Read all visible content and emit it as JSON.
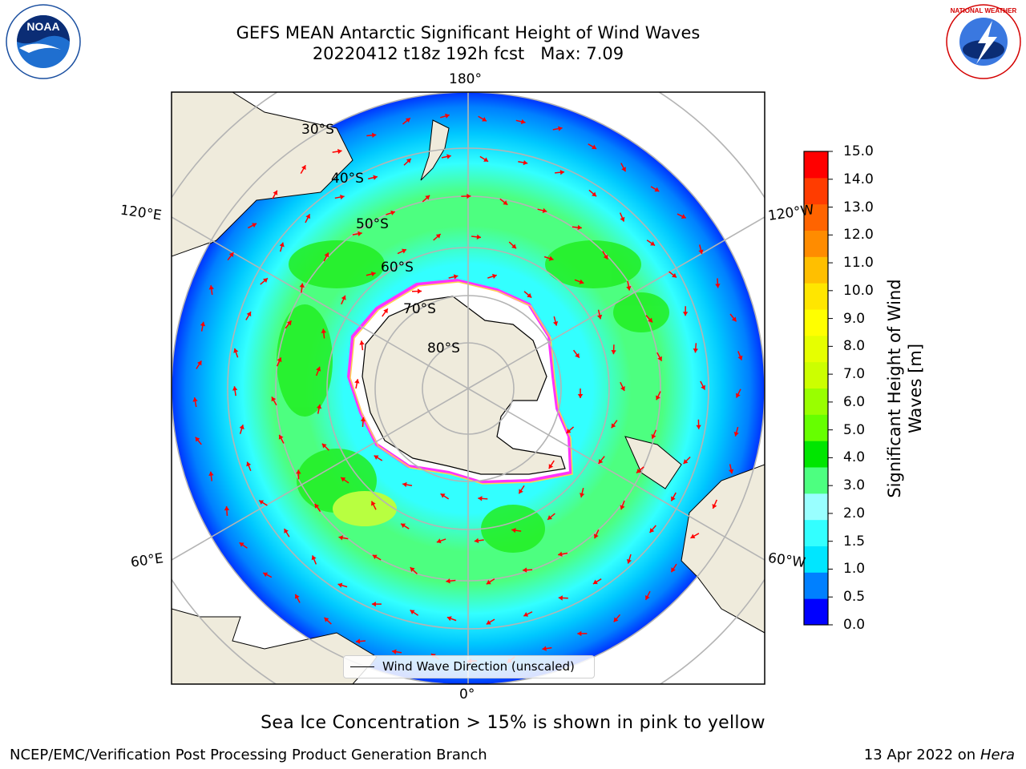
{
  "title": {
    "line1": "GEFS MEAN Antarctic Significant Height of Wind Waves",
    "line2": "20220412 t18z 192h fcst   Max: 7.09"
  },
  "logos": {
    "left": "NOAA",
    "right": "NATIONAL WEATHER SERVICE"
  },
  "map": {
    "projection": "south-polar-stereographic",
    "longitude_labels": [
      "180°",
      "120°E",
      "120°W",
      "60°E",
      "60°W",
      "0°"
    ],
    "latitude_labels": [
      "30°S",
      "40°S",
      "50°S",
      "60°S",
      "70°S",
      "80°S"
    ],
    "colors": {
      "land": "#efebdc",
      "ice": "#ffffff",
      "ice_edge": [
        "#ff33ff",
        "#ffd24d"
      ],
      "arrows": "#ff0000",
      "grid": "#b4b4b4"
    }
  },
  "legend": {
    "label": "Wind Wave Direction (unscaled)"
  },
  "colorbar": {
    "label_line1": "Significant Height of Wind",
    "label_line2": "Waves [m]",
    "ticks": [
      "15.0",
      "14.0",
      "13.0",
      "12.0",
      "11.0",
      "10.0",
      "9.0",
      "8.0",
      "7.0",
      "6.0",
      "5.0",
      "4.0",
      "3.0",
      "2.0",
      "1.5",
      "1.0",
      "0.5",
      "0.0"
    ],
    "colors": [
      "#0000ff",
      "#0080ff",
      "#00e6ff",
      "#33ffff",
      "#99ffff",
      "#4dff80",
      "#00e600",
      "#66ff00",
      "#99ff00",
      "#ccff00",
      "#e6ff00",
      "#ffff00",
      "#ffe600",
      "#ffbf00",
      "#ff8c00",
      "#ff6400",
      "#ff3c00",
      "#ff0000"
    ]
  },
  "caption": "Sea Ice Concentration > 15% is shown in pink to yellow",
  "footer": {
    "left": "NCEP/EMC/Verification Post Processing Product Generation Branch",
    "right_date": "13 Apr 2022 on ",
    "right_machine": "Hera"
  }
}
